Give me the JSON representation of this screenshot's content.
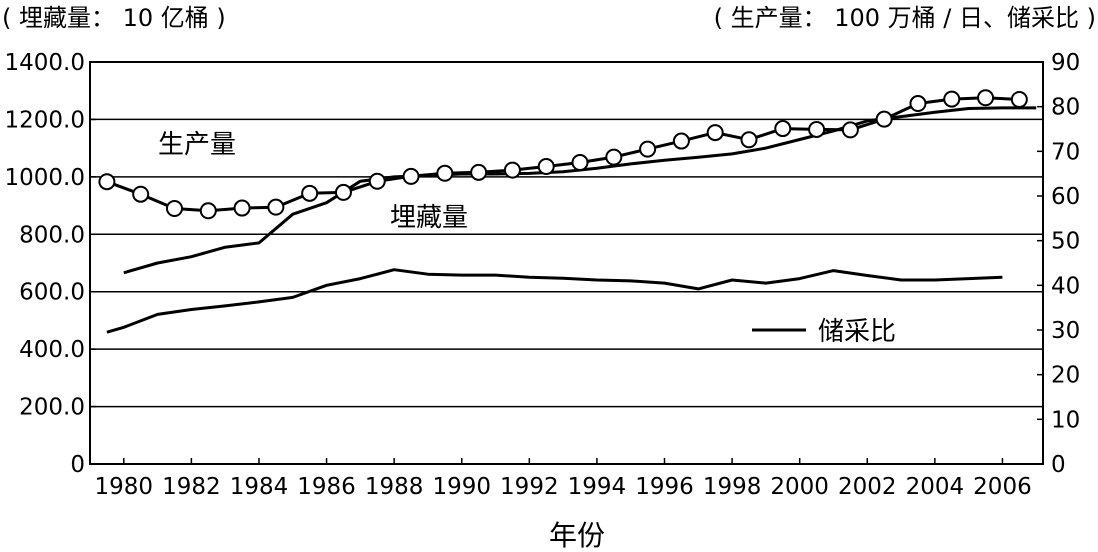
{
  "chart_data": {
    "type": "line",
    "left_axis_caption": "( 埋藏量： 10 亿桶 )",
    "right_axis_caption": "( 生产量： 100 万桶 / 日、储采比 )",
    "xlabel": "年份",
    "x_ticks": [
      "1980",
      "1982",
      "1984",
      "1986",
      "1988",
      "1990",
      "1992",
      "1994",
      "1996",
      "1998",
      "2000",
      "2002",
      "2004",
      "2006"
    ],
    "y_left": {
      "min": 0,
      "max": 1400,
      "ticks": [
        "0",
        "200.0",
        "400.0",
        "600.0",
        "800.0",
        "1000.0",
        "1200.0",
        "1400.0"
      ]
    },
    "y_right": {
      "min": 0,
      "max": 90,
      "ticks": [
        "0",
        "10",
        "20",
        "30",
        "40",
        "50",
        "60",
        "70",
        "80",
        "90"
      ]
    },
    "grid": "horizontal",
    "series": [
      {
        "name": "埋藏量",
        "axis": "left",
        "marker": "none",
        "points": [
          [
            1980,
            666
          ],
          [
            1981,
            700
          ],
          [
            1982,
            722
          ],
          [
            1983,
            755
          ],
          [
            1984,
            770
          ],
          [
            1985,
            870
          ],
          [
            1986,
            910
          ],
          [
            1987,
            985
          ],
          [
            1988,
            1000
          ],
          [
            1989,
            1005
          ],
          [
            1990,
            1010
          ],
          [
            1991,
            1010
          ],
          [
            1992,
            1012
          ],
          [
            1993,
            1018
          ],
          [
            1994,
            1030
          ],
          [
            1995,
            1045
          ],
          [
            1996,
            1058
          ],
          [
            1997,
            1068
          ],
          [
            1998,
            1080
          ],
          [
            1999,
            1100
          ],
          [
            2000,
            1130
          ],
          [
            2001,
            1160
          ],
          [
            2002,
            1195
          ],
          [
            2003,
            1210
          ],
          [
            2004,
            1225
          ],
          [
            2005,
            1238
          ],
          [
            2006,
            1240
          ],
          [
            2007,
            1240
          ]
        ]
      },
      {
        "name": "生产量",
        "axis": "right",
        "marker": "circle",
        "points": [
          [
            1979.5,
            63.2
          ],
          [
            1980.5,
            60.4
          ],
          [
            1981.5,
            57.2
          ],
          [
            1982.5,
            56.7
          ],
          [
            1983.5,
            57.3
          ],
          [
            1984.5,
            57.5
          ],
          [
            1985.5,
            60.6
          ],
          [
            1986.5,
            60.8
          ],
          [
            1987.5,
            63.3
          ],
          [
            1988.5,
            64.4
          ],
          [
            1989.5,
            65.1
          ],
          [
            1990.5,
            65.3
          ],
          [
            1991.5,
            65.8
          ],
          [
            1992.5,
            66.6
          ],
          [
            1993.5,
            67.5
          ],
          [
            1994.5,
            68.7
          ],
          [
            1995.5,
            70.5
          ],
          [
            1996.5,
            72.3
          ],
          [
            1997.5,
            74.2
          ],
          [
            1998.5,
            72.6
          ],
          [
            1999.5,
            75.1
          ],
          [
            2000.5,
            74.9
          ],
          [
            2001.5,
            74.8
          ],
          [
            2002.5,
            77.2
          ],
          [
            2003.5,
            80.7
          ],
          [
            2004.5,
            81.7
          ],
          [
            2005.5,
            82.0
          ],
          [
            2006.5,
            81.6
          ]
        ]
      },
      {
        "name": "储采比",
        "axis": "right",
        "marker": "none",
        "points": [
          [
            1979.5,
            29.5
          ],
          [
            1980,
            30.6
          ],
          [
            1981,
            33.5
          ],
          [
            1982,
            34.6
          ],
          [
            1983,
            35.4
          ],
          [
            1984,
            36.3
          ],
          [
            1985,
            37.3
          ],
          [
            1986,
            40.0
          ],
          [
            1987,
            41.5
          ],
          [
            1988,
            43.5
          ],
          [
            1989,
            42.5
          ],
          [
            1990,
            42.3
          ],
          [
            1991,
            42.3
          ],
          [
            1992,
            41.8
          ],
          [
            1993,
            41.6
          ],
          [
            1994,
            41.2
          ],
          [
            1995,
            41.0
          ],
          [
            1996,
            40.5
          ],
          [
            1997,
            39.2
          ],
          [
            1998,
            41.2
          ],
          [
            1999,
            40.5
          ],
          [
            2000,
            41.5
          ],
          [
            2001,
            43.3
          ],
          [
            2002,
            42.2
          ],
          [
            2003,
            41.2
          ],
          [
            2004,
            41.2
          ],
          [
            2005,
            41.5
          ],
          [
            2006,
            41.8
          ]
        ]
      }
    ],
    "annotations": [
      "生产量",
      "埋藏量",
      "储采比"
    ]
  }
}
